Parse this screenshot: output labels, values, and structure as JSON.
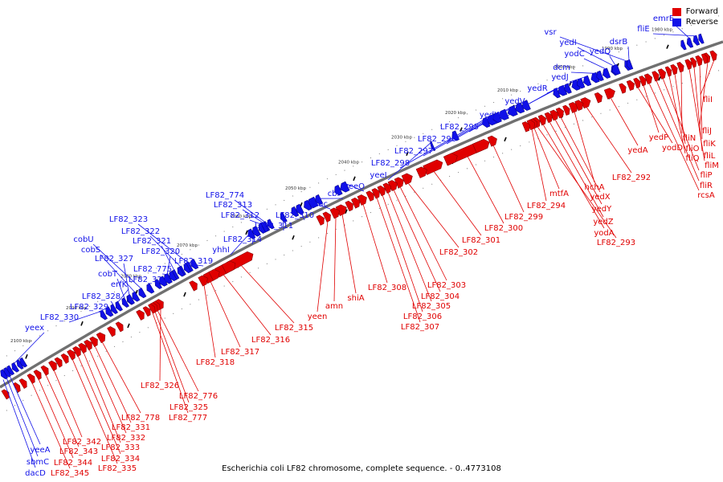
{
  "legend": {
    "forward_label": "Forward",
    "reverse_label": "Reverse",
    "forward_color": "#e00000",
    "reverse_color": "#1010e8"
  },
  "caption": "Escherichia coli LF82 chromosome, complete sequence. - 0..4773108",
  "backbone_color": "#707070",
  "kbp_ticks": [
    "1980 kbp",
    "1990 kbp",
    "2000 kbp",
    "2010 kbp",
    "2020 kbp",
    "2030 kbp",
    "2040 kbp",
    "2050 kbp",
    "2060 kbp",
    "2070 kbp",
    "2080 kbp",
    "2090 kbp",
    "2100 kbp"
  ],
  "reverse_genes": [
    "emrE",
    "fliE",
    "vsr",
    "yedI",
    "yodC",
    "dsrB",
    "yedQ",
    "dcm",
    "yedJ",
    "yedR",
    "yedV",
    "yedW",
    "LF82_295",
    "LF82_296",
    "LF82_297",
    "LF82_298",
    "yeeI",
    "yeeO",
    "cbl",
    "nac",
    "LF82_310",
    "LF82_311",
    "LF82_774",
    "LF82_313",
    "LF82_312",
    "LF82_314",
    "yhhI",
    "LF82_323",
    "LF82_322",
    "LF82_321",
    "LF82_320",
    "LF82_319",
    "cobU",
    "cobS",
    "LF82_327",
    "LF82_775",
    "cobT",
    "LF82_324",
    "erfK",
    "LF82_328",
    "LF82_329",
    "LF82_330",
    "yeex",
    "yeeA",
    "sbmC",
    "dacD"
  ],
  "forward_genes": [
    "fliI",
    "fliJ",
    "fliN",
    "fliK",
    "fliO",
    "fliL",
    "fliQ",
    "fliM",
    "fliP",
    "fliR",
    "rcsA",
    "yedP",
    "yodD",
    "yedA",
    "LF82_292",
    "hchA",
    "yedX",
    "yedY",
    "yedZ",
    "yodA",
    "LF82_293",
    "mtfA",
    "LF82_294",
    "LF82_299",
    "LF82_300",
    "LF82_301",
    "LF82_302",
    "LF82_303",
    "LF82_304",
    "LF82_305",
    "LF82_306",
    "LF82_307",
    "LF82_308",
    "shiA",
    "amn",
    "yeen",
    "LF82_315",
    "LF82_316",
    "LF82_317",
    "LF82_318",
    "LF82_326",
    "LF82_776",
    "LF82_325",
    "LF82_777",
    "LF82_778",
    "LF82_331",
    "LF82_332",
    "LF82_333",
    "LF82_334",
    "LF82_335",
    "LF82_342",
    "LF82_343",
    "LF82_344",
    "LF82_345"
  ]
}
